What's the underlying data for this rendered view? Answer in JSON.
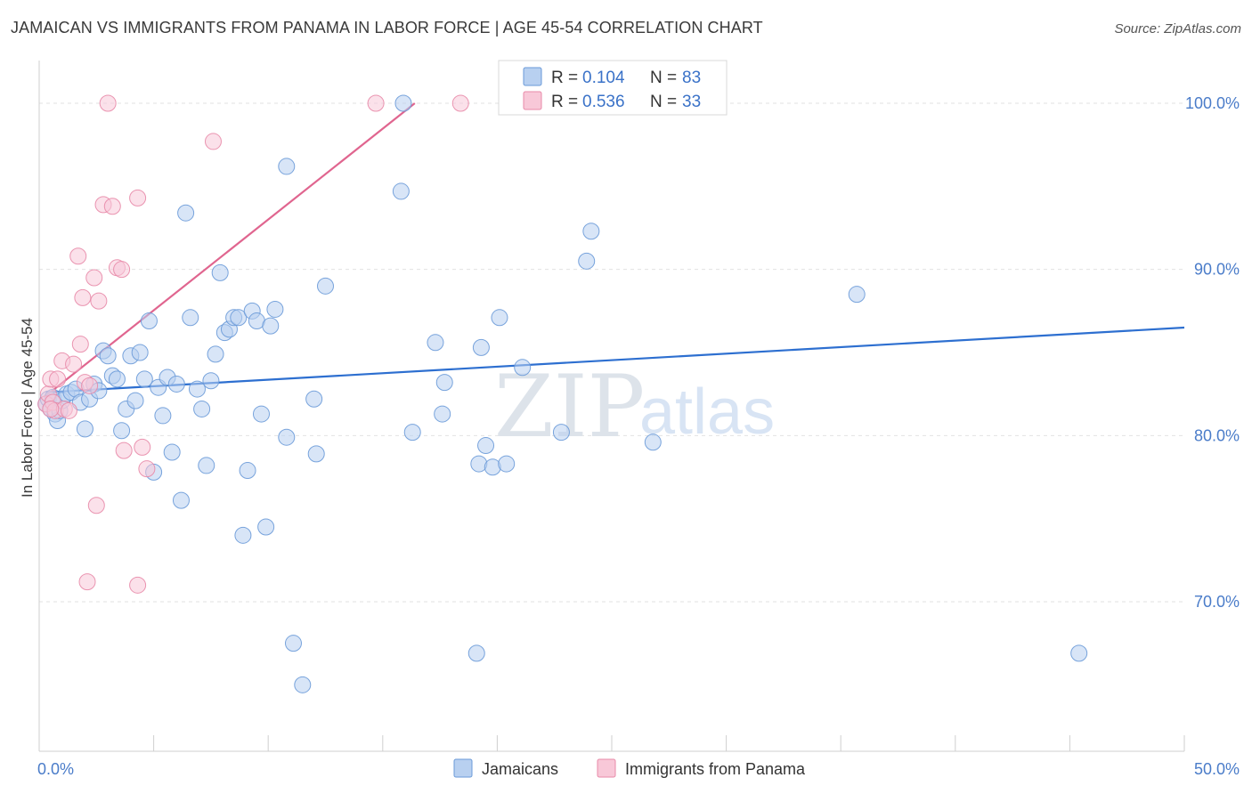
{
  "title": "JAMAICAN VS IMMIGRANTS FROM PANAMA IN LABOR FORCE | AGE 45-54 CORRELATION CHART",
  "source": "Source: ZipAtlas.com",
  "watermark": {
    "zip": "ZIP",
    "atlas": "atlas"
  },
  "legend": {
    "r_label": "R =",
    "n_label": "N =",
    "rows": [
      {
        "r": "0.104",
        "n": "83",
        "fill": "#b8d0f0",
        "stroke": "#6a9ad8"
      },
      {
        "r": "0.536",
        "n": "33",
        "fill": "#f8c8d8",
        "stroke": "#e88aa8"
      }
    ]
  },
  "chart_data": {
    "type": "scatter",
    "xlabel": "",
    "ylabel": "In Labor Force | Age 45-54",
    "xlim": [
      0,
      50
    ],
    "ylim": [
      61,
      103
    ],
    "x_tick_labels": [
      {
        "value": 0,
        "label": "0.0%"
      },
      {
        "value": 50,
        "label": "50.0%"
      }
    ],
    "y_tick_labels": [
      {
        "value": 70,
        "label": "70.0%"
      },
      {
        "value": 80,
        "label": "80.0%"
      },
      {
        "value": 90,
        "label": "90.0%"
      },
      {
        "value": 100,
        "label": "100.0%"
      }
    ],
    "series": [
      {
        "name": "Jamaicans",
        "color": "#6a9ad8",
        "fill": "#b8d0f0",
        "trend": {
          "x0": 0.3,
          "y0": 82.6,
          "x1": 50,
          "y1": 86.5,
          "color": "#2d6fd0"
        },
        "points": [
          [
            0.3,
            81.9
          ],
          [
            0.4,
            82.2
          ],
          [
            0.5,
            81.6
          ],
          [
            0.6,
            82.3
          ],
          [
            0.7,
            81.3
          ],
          [
            0.8,
            80.9
          ],
          [
            0.9,
            81.5
          ],
          [
            1.0,
            82.1
          ],
          [
            1.2,
            82.5
          ],
          [
            1.4,
            82.6
          ],
          [
            1.6,
            82.8
          ],
          [
            1.8,
            82.0
          ],
          [
            2.0,
            80.4
          ],
          [
            2.2,
            82.2
          ],
          [
            2.4,
            83.1
          ],
          [
            2.6,
            82.7
          ],
          [
            2.8,
            85.1
          ],
          [
            3.0,
            84.8
          ],
          [
            3.2,
            83.6
          ],
          [
            3.4,
            83.4
          ],
          [
            3.6,
            80.3
          ],
          [
            3.8,
            81.6
          ],
          [
            4.0,
            84.8
          ],
          [
            4.2,
            82.1
          ],
          [
            4.4,
            85.0
          ],
          [
            4.6,
            83.4
          ],
          [
            4.8,
            86.9
          ],
          [
            5.0,
            77.8
          ],
          [
            5.2,
            82.9
          ],
          [
            5.4,
            81.2
          ],
          [
            5.6,
            83.5
          ],
          [
            5.8,
            79.0
          ],
          [
            6.0,
            83.1
          ],
          [
            6.2,
            76.1
          ],
          [
            6.4,
            93.4
          ],
          [
            6.6,
            87.1
          ],
          [
            6.9,
            82.8
          ],
          [
            7.1,
            81.6
          ],
          [
            7.3,
            78.2
          ],
          [
            7.5,
            83.3
          ],
          [
            7.7,
            84.9
          ],
          [
            7.9,
            89.8
          ],
          [
            8.1,
            86.2
          ],
          [
            8.3,
            86.4
          ],
          [
            8.5,
            87.1
          ],
          [
            8.7,
            87.1
          ],
          [
            8.9,
            74.0
          ],
          [
            9.1,
            77.9
          ],
          [
            9.3,
            87.5
          ],
          [
            9.5,
            86.9
          ],
          [
            9.7,
            81.3
          ],
          [
            9.9,
            74.5
          ],
          [
            10.1,
            86.6
          ],
          [
            10.3,
            87.6
          ],
          [
            10.8,
            79.9
          ],
          [
            10.8,
            96.2
          ],
          [
            11.1,
            67.5
          ],
          [
            11.5,
            65.0
          ],
          [
            12.0,
            82.2
          ],
          [
            12.1,
            78.9
          ],
          [
            12.5,
            89.0
          ],
          [
            15.8,
            94.7
          ],
          [
            15.9,
            100.0
          ],
          [
            16.3,
            80.2
          ],
          [
            17.3,
            85.6
          ],
          [
            17.6,
            81.3
          ],
          [
            17.7,
            83.2
          ],
          [
            19.1,
            66.9
          ],
          [
            19.2,
            78.3
          ],
          [
            19.3,
            85.3
          ],
          [
            19.5,
            79.4
          ],
          [
            19.8,
            78.1
          ],
          [
            20.4,
            78.3
          ],
          [
            20.1,
            87.1
          ],
          [
            21.1,
            84.1
          ],
          [
            22.8,
            80.2
          ],
          [
            23.9,
            90.5
          ],
          [
            24.1,
            92.3
          ],
          [
            26.8,
            79.6
          ],
          [
            27.8,
            100.0
          ],
          [
            28.2,
            100.0
          ],
          [
            35.7,
            88.5
          ],
          [
            45.4,
            66.9
          ]
        ]
      },
      {
        "name": "Immigrants from Panama",
        "color": "#e88aa8",
        "fill": "#f8c8d8",
        "trend": {
          "x0": 0.3,
          "y0": 82.4,
          "x1": 16.4,
          "y1": 100.0,
          "color": "#e0658f"
        },
        "points": [
          [
            0.3,
            81.9
          ],
          [
            0.4,
            82.5
          ],
          [
            0.5,
            83.4
          ],
          [
            0.6,
            82.0
          ],
          [
            0.7,
            81.5
          ],
          [
            0.8,
            83.4
          ],
          [
            1.0,
            84.5
          ],
          [
            1.1,
            81.6
          ],
          [
            1.3,
            81.5
          ],
          [
            1.5,
            84.3
          ],
          [
            1.7,
            90.8
          ],
          [
            1.8,
            85.5
          ],
          [
            1.9,
            88.3
          ],
          [
            2.0,
            83.2
          ],
          [
            2.1,
            71.2
          ],
          [
            2.2,
            83.0
          ],
          [
            2.4,
            89.5
          ],
          [
            2.5,
            75.8
          ],
          [
            2.6,
            88.1
          ],
          [
            2.8,
            93.9
          ],
          [
            3.0,
            100.0
          ],
          [
            3.2,
            93.8
          ],
          [
            3.4,
            90.1
          ],
          [
            3.6,
            90.0
          ],
          [
            3.7,
            79.1
          ],
          [
            4.3,
            71.0
          ],
          [
            4.3,
            94.3
          ],
          [
            4.5,
            79.3
          ],
          [
            4.7,
            78.0
          ],
          [
            7.6,
            97.7
          ],
          [
            14.7,
            100.0
          ],
          [
            18.4,
            100.0
          ],
          [
            0.5,
            81.6
          ]
        ]
      }
    ]
  },
  "bottom_legend": [
    {
      "label": "Jamaicans",
      "fill": "#b8d0f0",
      "stroke": "#6a9ad8"
    },
    {
      "label": "Immigrants from Panama",
      "fill": "#f8c8d8",
      "stroke": "#e88aa8"
    }
  ]
}
